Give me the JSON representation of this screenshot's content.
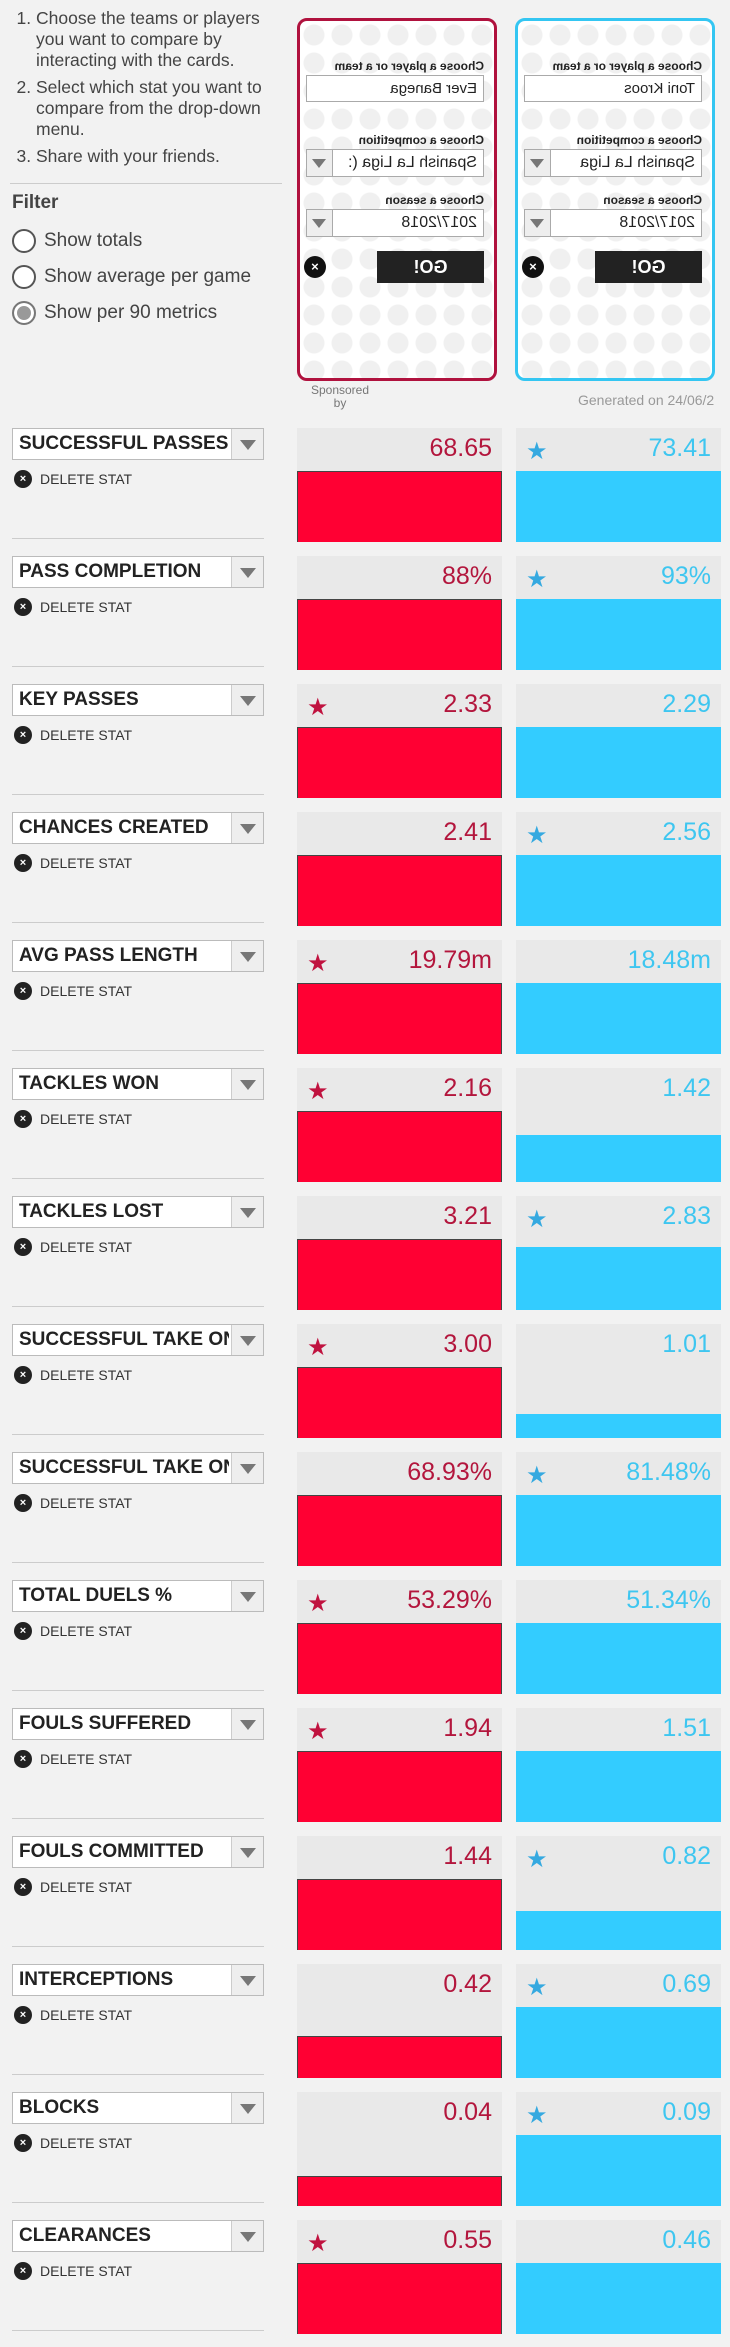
{
  "instructions": [
    "Choose the teams or players you want to compare by interacting with the cards.",
    "Select which stat you want to compare from the drop-down menu.",
    "Share with your friends."
  ],
  "filter": {
    "title": "Filter",
    "options": [
      {
        "label": "Show totals",
        "selected": false
      },
      {
        "label": "Show average per game",
        "selected": false
      },
      {
        "label": "Show per 90 metrics",
        "selected": true
      }
    ]
  },
  "cards": {
    "left": {
      "player_label": "Choose a player or a team",
      "player_value": "Ever Banega",
      "competition_label": "Choose a competition",
      "competition_value": "Spanish La Liga (:",
      "season_label": "Choose a season",
      "season_value": "2017/2018",
      "go_label": "GO!",
      "close_icon": "×",
      "accent": "#b0123e"
    },
    "right": {
      "player_label": "Choose a player or a team",
      "player_value": "Toni Kroos",
      "competition_label": "Choose a competition",
      "competition_value": "Spanish La Liga",
      "season_label": "Choose a season",
      "season_value": "2017/2018",
      "go_label": "GO!",
      "close_icon": "×",
      "accent": "#34c6f2"
    }
  },
  "sponsored": "Sponsored by",
  "generated": "Generated on 24/06/2",
  "delete_label": "DELETE STAT",
  "colors": {
    "left": "#ff0033",
    "right": "#33ccff"
  },
  "stats": [
    {
      "name": "SUCCESSFUL PASSES",
      "left": "68.65",
      "right": "73.41",
      "left_fill": 0.62,
      "right_fill": 0.62,
      "star": "right"
    },
    {
      "name": "PASS COMPLETION",
      "left": "88%",
      "right": "93%",
      "left_fill": 0.62,
      "right_fill": 0.62,
      "star": "right"
    },
    {
      "name": "KEY PASSES",
      "left": "2.33",
      "right": "2.29",
      "left_fill": 0.62,
      "right_fill": 0.62,
      "star": "left"
    },
    {
      "name": "CHANCES CREATED",
      "left": "2.41",
      "right": "2.56",
      "left_fill": 0.62,
      "right_fill": 0.62,
      "star": "right"
    },
    {
      "name": "AVG PASS LENGTH",
      "left": "19.79m",
      "right": "18.48m",
      "left_fill": 0.62,
      "right_fill": 0.62,
      "star": "left"
    },
    {
      "name": "TACKLES WON",
      "left": "2.16",
      "right": "1.42",
      "left_fill": 0.62,
      "right_fill": 0.41,
      "star": "left"
    },
    {
      "name": "TACKLES LOST",
      "left": "3.21",
      "right": "2.83",
      "left_fill": 0.62,
      "right_fill": 0.55,
      "star": "right"
    },
    {
      "name": "SUCCESSFUL TAKE ONS",
      "left": "3.00",
      "right": "1.01",
      "left_fill": 0.62,
      "right_fill": 0.21,
      "star": "left"
    },
    {
      "name": "SUCCESSFUL TAKE ONS %",
      "left": "68.93%",
      "right": "81.48%",
      "left_fill": 0.62,
      "right_fill": 0.62,
      "star": "right"
    },
    {
      "name": "TOTAL DUELS %",
      "left": "53.29%",
      "right": "51.34%",
      "left_fill": 0.62,
      "right_fill": 0.62,
      "star": "left"
    },
    {
      "name": "FOULS SUFFERED",
      "left": "1.94",
      "right": "1.51",
      "left_fill": 0.62,
      "right_fill": 0.62,
      "star": "left"
    },
    {
      "name": "FOULS COMMITTED",
      "left": "1.44",
      "right": "0.82",
      "left_fill": 0.62,
      "right_fill": 0.34,
      "star": "right"
    },
    {
      "name": "INTERCEPTIONS",
      "left": "0.42",
      "right": "0.69",
      "left_fill": 0.37,
      "right_fill": 0.62,
      "star": "right"
    },
    {
      "name": "BLOCKS",
      "left": "0.04",
      "right": "0.09",
      "left_fill": 0.26,
      "right_fill": 0.62,
      "star": "right"
    },
    {
      "name": "CLEARANCES",
      "left": "0.55",
      "right": "0.46",
      "left_fill": 0.62,
      "right_fill": 0.62,
      "star": "left"
    }
  ]
}
